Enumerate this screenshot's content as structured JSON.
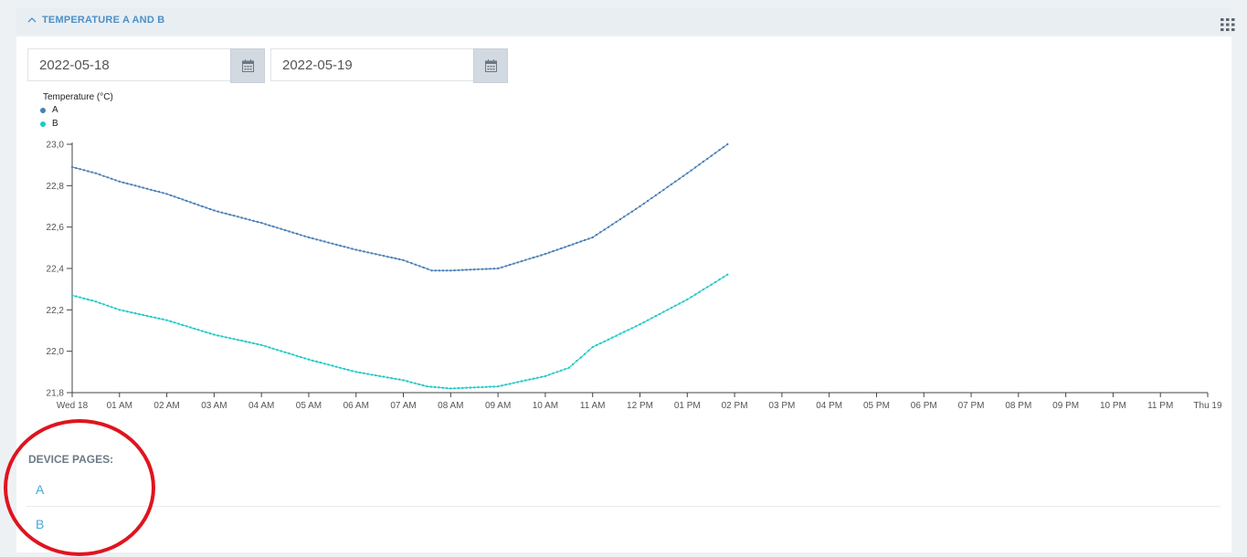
{
  "panel": {
    "title": "TEMPERATURE A AND B",
    "icons": {
      "collapse": "chevron-up-icon",
      "menu": "grid-menu-icon"
    }
  },
  "date_range": {
    "start": "2022-05-18",
    "end": "2022-05-19",
    "icon": "calendar-icon"
  },
  "legend": {
    "title": "Temperature (°C)",
    "items": [
      {
        "label": "A",
        "color": "#4a7fb5"
      },
      {
        "label": "B",
        "color": "#1fc8c8"
      }
    ]
  },
  "chart_data": {
    "type": "line",
    "title": "",
    "ylabel": "Temperature (°C)",
    "ylim": [
      21.8,
      23.0
    ],
    "y_ticks": [
      "21,8",
      "22,0",
      "22,2",
      "22,4",
      "22,6",
      "22,8",
      "23,0"
    ],
    "x_ticks": [
      "Wed 18",
      "01 AM",
      "02 AM",
      "03 AM",
      "04 AM",
      "05 AM",
      "06 AM",
      "07 AM",
      "08 AM",
      "09 AM",
      "10 AM",
      "11 AM",
      "12 PM",
      "01 PM",
      "02 PM",
      "03 PM",
      "04 PM",
      "05 PM",
      "06 PM",
      "07 PM",
      "08 PM",
      "09 PM",
      "10 PM",
      "11 PM",
      "Thu 19"
    ],
    "x_unit": "hours since 2022-05-18 00:00",
    "xlim": [
      0,
      24
    ],
    "series": [
      {
        "name": "A",
        "color": "#4a7fb5",
        "points": [
          [
            0,
            22.89
          ],
          [
            0.5,
            22.86
          ],
          [
            1,
            22.82
          ],
          [
            2,
            22.76
          ],
          [
            3,
            22.68
          ],
          [
            4,
            22.62
          ],
          [
            5,
            22.55
          ],
          [
            6,
            22.49
          ],
          [
            7,
            22.44
          ],
          [
            7.6,
            22.39
          ],
          [
            8,
            22.39
          ],
          [
            9,
            22.4
          ],
          [
            10,
            22.47
          ],
          [
            11,
            22.55
          ],
          [
            12,
            22.7
          ],
          [
            13,
            22.86
          ],
          [
            13.85,
            23.0
          ]
        ]
      },
      {
        "name": "B",
        "color": "#1fc8c8",
        "points": [
          [
            0,
            22.27
          ],
          [
            0.5,
            22.24
          ],
          [
            1,
            22.2
          ],
          [
            2,
            22.15
          ],
          [
            3,
            22.08
          ],
          [
            4,
            22.03
          ],
          [
            5,
            21.96
          ],
          [
            6,
            21.9
          ],
          [
            7,
            21.86
          ],
          [
            7.5,
            21.83
          ],
          [
            8,
            21.82
          ],
          [
            9,
            21.83
          ],
          [
            10,
            21.88
          ],
          [
            10.5,
            21.92
          ],
          [
            11,
            22.02
          ],
          [
            12,
            22.13
          ],
          [
            13,
            22.25
          ],
          [
            13.85,
            22.37
          ]
        ]
      }
    ],
    "legend_position": "top-left",
    "grid": false
  },
  "device_pages": {
    "title": "DEVICE PAGES:",
    "links": [
      {
        "label": "A"
      },
      {
        "label": "B"
      }
    ]
  }
}
